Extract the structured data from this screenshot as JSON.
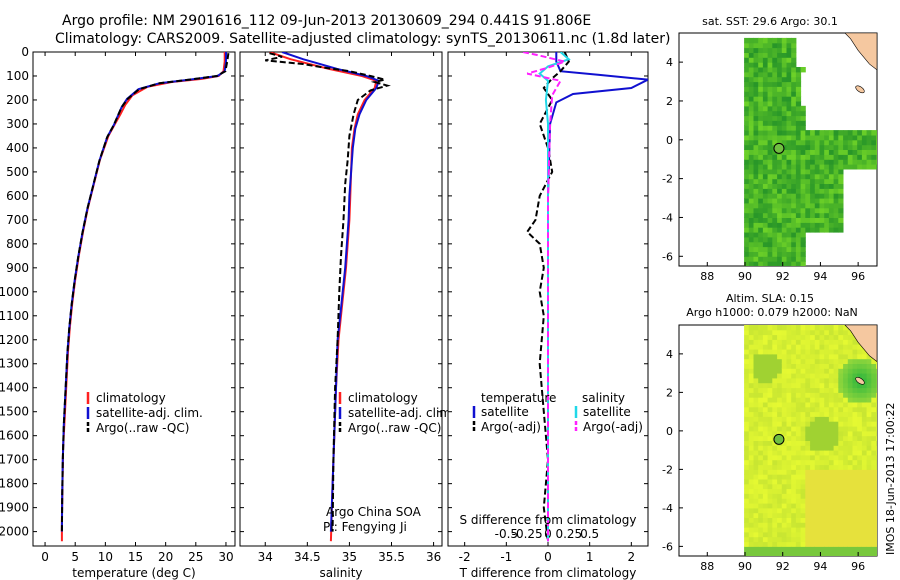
{
  "title": {
    "line1": "Argo profile: NM 2901616_112 09-Jun-2013 20130609_294 0.441S 91.806E",
    "line2": "Climatology: CARS2009. Satellite-adjusted climatology: synTS_20130611.nc (1.8d later)"
  },
  "depth_ticks": [
    "0",
    "100",
    "200",
    "300",
    "400",
    "500",
    "600",
    "700",
    "800",
    "900",
    "1000",
    "1100",
    "1200",
    "1300",
    "1400",
    "1500",
    "1600",
    "1700",
    "1800",
    "1900",
    "2000"
  ],
  "colors": {
    "climatology": "#ff2020",
    "satellite": "#1010d0",
    "argo": "#000000",
    "sal_sat": "#20d8e8",
    "sal_argo": "#ff20ff",
    "land": "#f5c8a0"
  },
  "chart_data": [
    {
      "type": "line",
      "id": "temperature",
      "xlabel": "temperature (deg C)",
      "xlim": [
        -2,
        31.5
      ],
      "ylim": [
        2060,
        0
      ],
      "xticks": [
        0,
        5,
        10,
        15,
        20,
        25,
        30
      ],
      "xtick_labels": [
        "0",
        "5",
        "10",
        "15",
        "20",
        "25",
        "30"
      ],
      "legend": [
        "climatology",
        "satellite-adj. clim.",
        "Argo(..raw -QC)"
      ],
      "series": [
        {
          "name": "climatology",
          "color": "#ff2020",
          "x": [
            29.8,
            29.8,
            29.6,
            28.8,
            26,
            21,
            17,
            14.5,
            13.3,
            12.5,
            11.6,
            10.5,
            9.1,
            8.1,
            7.1,
            6.3,
            5.6,
            5.0,
            4.5,
            4.1,
            3.8,
            3.6,
            3.4,
            3.2,
            3.0,
            2.9,
            2.8,
            2.8
          ],
          "y": [
            0,
            40,
            80,
            100,
            112,
            125,
            145,
            180,
            220,
            260,
            300,
            350,
            450,
            550,
            650,
            750,
            850,
            950,
            1050,
            1150,
            1250,
            1350,
            1450,
            1550,
            1650,
            1800,
            1950,
            2040
          ]
        },
        {
          "name": "satellite-adj. clim.",
          "color": "#1010d0",
          "x": [
            30.0,
            30.0,
            29.8,
            28.6,
            24,
            19,
            15.5,
            13.6,
            12.7,
            12.1,
            11.4,
            10.3,
            9.0,
            8.0,
            7.0,
            6.2,
            5.5,
            4.9,
            4.4,
            4.0,
            3.7,
            3.5,
            3.3,
            3.1,
            2.95,
            2.85,
            2.8
          ],
          "y": [
            0,
            40,
            80,
            100,
            115,
            130,
            155,
            195,
            230,
            265,
            305,
            355,
            455,
            555,
            655,
            755,
            855,
            955,
            1055,
            1155,
            1255,
            1355,
            1455,
            1555,
            1700,
            1850,
            2000
          ]
        },
        {
          "name": "Argo",
          "color": "#000000",
          "x": [
            30.4,
            30.2,
            29.9,
            28.5,
            24,
            19,
            15.6,
            13.7,
            12.7,
            12.1,
            11.4,
            10.3,
            9.0,
            8.0,
            7.0,
            6.2,
            5.5,
            4.9,
            4.4,
            4.0,
            3.7,
            3.5,
            3.3,
            3.1,
            2.95,
            2.85,
            2.8
          ],
          "y": [
            5,
            40,
            80,
            100,
            115,
            130,
            155,
            195,
            230,
            265,
            305,
            355,
            455,
            555,
            655,
            755,
            855,
            955,
            1055,
            1155,
            1255,
            1355,
            1455,
            1555,
            1700,
            1850,
            2000
          ]
        }
      ]
    },
    {
      "type": "line",
      "id": "salinity",
      "xlabel": "salinity",
      "xlim": [
        33.7,
        36.1
      ],
      "ylim": [
        2060,
        0
      ],
      "xticks": [
        34,
        34.5,
        35,
        35.5,
        36
      ],
      "xtick_labels": [
        "34",
        "34.5",
        "35",
        "35.5",
        "36"
      ],
      "legend": [
        "climatology",
        "satellite-adj. clim.",
        "Argo(..raw -QC)"
      ],
      "annotation": [
        "Argo China SOA",
        "PI: Fengying Ji"
      ],
      "series": [
        {
          "name": "climatology",
          "color": "#ff2020",
          "x": [
            34.05,
            34.3,
            34.75,
            35.15,
            35.32,
            35.3,
            35.18,
            35.1,
            35.06,
            35.03,
            35.02,
            35.01,
            35.0,
            34.98,
            34.96,
            34.93,
            34.9,
            34.87,
            34.84,
            34.82,
            34.8,
            34.78
          ],
          "y": [
            0,
            30,
            70,
            100,
            120,
            150,
            200,
            260,
            320,
            400,
            500,
            600,
            700,
            800,
            900,
            1000,
            1100,
            1200,
            1400,
            1600,
            1800,
            2040
          ]
        },
        {
          "name": "satellite-adj. clim.",
          "color": "#1010d0",
          "x": [
            34.2,
            34.45,
            34.85,
            35.2,
            35.35,
            35.32,
            35.2,
            35.12,
            35.07,
            35.04,
            35.02,
            35.0,
            34.99,
            34.97,
            34.95,
            34.92,
            34.89,
            34.86,
            34.84,
            34.82,
            34.8,
            34.78
          ],
          "y": [
            0,
            30,
            70,
            100,
            120,
            150,
            200,
            260,
            320,
            400,
            500,
            600,
            700,
            800,
            900,
            1000,
            1100,
            1200,
            1400,
            1600,
            1800,
            2000
          ]
        },
        {
          "name": "Argo",
          "color": "#000000",
          "x": [
            34.05,
            34.2,
            34.0,
            34.45,
            34.7,
            35.0,
            35.25,
            35.42,
            35.3,
            35.45,
            35.25,
            35.1,
            35.05,
            35.0,
            34.98,
            34.95,
            34.93,
            34.9,
            34.88,
            34.86,
            34.83,
            34.81,
            34.8
          ],
          "y": [
            5,
            20,
            35,
            50,
            65,
            80,
            100,
            115,
            125,
            140,
            160,
            200,
            260,
            350,
            450,
            550,
            700,
            850,
            1000,
            1200,
            1400,
            1700,
            2000
          ]
        }
      ]
    },
    {
      "type": "line",
      "id": "difference",
      "xlabel": "T difference from climatology",
      "xlabel_top": "S difference from climatology",
      "xlim": [
        -2.4,
        2.4
      ],
      "ylim": [
        2060,
        0
      ],
      "xticks": [
        -2,
        -1,
        0,
        1,
        2
      ],
      "xtick_labels": [
        "-2",
        "-1",
        "0",
        "1",
        "2"
      ],
      "xticks_s": [
        -1.0,
        -0.5,
        0,
        0.5,
        1.0
      ],
      "xtick_labels_s": [
        "-0.5",
        "-0.25",
        "0",
        "0.25",
        "0.5"
      ],
      "legend_temperature": [
        "temperature",
        "satellite",
        "Argo(-adj)"
      ],
      "legend_salinity": [
        "salinity",
        "satellite",
        "Argo(-adj)"
      ],
      "series": [
        {
          "name": "T satellite",
          "color": "#1010d0",
          "x": [
            0.2,
            0.2,
            0.3,
            1.2,
            2.4,
            2.0,
            0.6,
            0.2,
            0.05,
            0.0,
            0.0,
            0.0,
            0.0
          ],
          "y": [
            0,
            40,
            80,
            95,
            115,
            150,
            175,
            210,
            300,
            600,
            1000,
            1500,
            2040
          ]
        },
        {
          "name": "T Argo(-adj)",
          "color": "#000000",
          "x": [
            0.4,
            0.5,
            0.3,
            0.1,
            -0.1,
            0.1,
            -0.2,
            0.0,
            0.1,
            -0.2,
            -0.3,
            -0.5,
            -0.2,
            -0.1,
            -0.2,
            -0.1,
            -0.2,
            -0.1,
            0.0,
            -0.1,
            0.0
          ],
          "y": [
            0,
            40,
            80,
            110,
            150,
            200,
            300,
            400,
            500,
            600,
            700,
            750,
            800,
            900,
            1000,
            1100,
            1300,
            1500,
            1700,
            1900,
            2040
          ]
        },
        {
          "name": "S satellite",
          "color": "#20d8e8",
          "x": [
            0.3,
            0.5,
            0.0,
            -0.2,
            0.0,
            -0.05,
            0.0,
            0.0,
            0.0,
            0.0,
            0.0
          ],
          "y": [
            0,
            30,
            60,
            90,
            120,
            200,
            300,
            600,
            1000,
            1500,
            2040
          ]
        },
        {
          "name": "S Argo(-adj)",
          "color": "#ff20ff",
          "x": [
            -0.6,
            -0.2,
            0.4,
            0.0,
            -0.5,
            0.3,
            0.1,
            0.05,
            0.0,
            0.0,
            0.0
          ],
          "y": [
            0,
            15,
            40,
            65,
            90,
            120,
            180,
            300,
            600,
            1200,
            2040
          ]
        }
      ]
    },
    {
      "type": "heatmap",
      "id": "sst_map",
      "title": "sat. SST: 29.6  Argo: 30.1",
      "xlim": [
        86.5,
        97
      ],
      "ylim": [
        -6.5,
        5.5
      ],
      "xticks": [
        88,
        90,
        92,
        94,
        96
      ],
      "xtick_labels": [
        "88",
        "90",
        "92",
        "94",
        "96"
      ],
      "yticks": [
        4,
        2,
        0,
        -2,
        -4,
        -6
      ],
      "ytick_labels": [
        "4",
        "2",
        "0",
        "-2",
        "-4",
        "-6"
      ],
      "point": [
        91.8,
        -0.44
      ]
    },
    {
      "type": "heatmap",
      "id": "sla_map",
      "title": "Altim. SLA: 0.15",
      "subtitle": "Argo h1000: 0.079  h2000: NaN",
      "xlim": [
        86.5,
        97
      ],
      "ylim": [
        -6.5,
        5.5
      ],
      "xticks": [
        88,
        90,
        92,
        94,
        96
      ],
      "xtick_labels": [
        "88",
        "90",
        "92",
        "94",
        "96"
      ],
      "yticks": [
        4,
        2,
        0,
        -2,
        -4,
        -6
      ],
      "ytick_labels": [
        "4",
        "2",
        "0",
        "-2",
        "-4",
        "-6"
      ],
      "point": [
        91.8,
        -0.44
      ]
    }
  ],
  "footer": "IMOS 18-Jun-2013 17:00:22"
}
